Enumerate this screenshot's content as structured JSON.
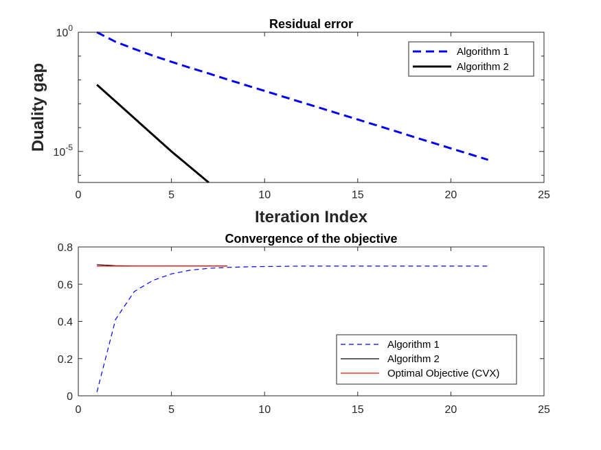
{
  "chart_data": [
    {
      "type": "line",
      "title": "Residual error",
      "xlabel": "Iteration Index",
      "ylabel": "Duality gap",
      "xlim": [
        0,
        25
      ],
      "ylim_log10": [
        -6.3,
        0
      ],
      "yscale": "log",
      "xticks": [
        "0",
        "5",
        "10",
        "15",
        "20",
        "25"
      ],
      "ytick_base": "10",
      "yticks": [
        {
          "exp": 0,
          "label": "0"
        },
        {
          "exp": -5,
          "label": "-5"
        }
      ],
      "legend": {
        "placement": "top-right",
        "entries": [
          "Algorithm 1",
          "Algorithm 2"
        ]
      },
      "series": [
        {
          "name": "Algorithm 1",
          "color": "#0000ff",
          "style": "dashed",
          "x": [
            1,
            2,
            3,
            4,
            5,
            6,
            7,
            8,
            9,
            10,
            11,
            12,
            13,
            14,
            15,
            16,
            17,
            18,
            19,
            20,
            21,
            22
          ],
          "y_log10": [
            0,
            -0.4,
            -0.7,
            -0.98,
            -1.24,
            -1.49,
            -1.73,
            -1.98,
            -2.22,
            -2.46,
            -2.7,
            -2.94,
            -3.18,
            -3.42,
            -3.66,
            -3.9,
            -4.14,
            -4.39,
            -4.63,
            -4.87,
            -5.11,
            -5.35
          ]
        },
        {
          "name": "Algorithm 2",
          "color": "#000000",
          "style": "solid",
          "x": [
            1,
            2,
            3,
            4,
            5,
            6,
            7
          ],
          "y_log10": [
            -2.2,
            -2.9,
            -3.6,
            -4.3,
            -5.0,
            -5.65,
            -6.3
          ]
        }
      ]
    },
    {
      "type": "line",
      "title": "Convergence of the objective",
      "xlim": [
        0,
        25
      ],
      "ylim": [
        0,
        0.8
      ],
      "xticks": [
        "0",
        "5",
        "10",
        "15",
        "20",
        "25"
      ],
      "yticks": [
        "0",
        "0.2",
        "0.4",
        "0.6",
        "0.8"
      ],
      "legend": {
        "placement": "bottom-right",
        "entries": [
          "Algorithm 1",
          "Algorithm 2",
          "Optimal Objective (CVX)"
        ]
      },
      "series": [
        {
          "name": "Algorithm 1",
          "color": "#0000ff",
          "style": "dashed",
          "x": [
            1,
            2,
            3,
            4,
            5,
            6,
            7,
            8,
            9,
            10,
            11,
            12,
            13,
            14,
            15,
            16,
            17,
            18,
            19,
            20,
            21,
            22
          ],
          "y": [
            0.02,
            0.41,
            0.56,
            0.62,
            0.655,
            0.675,
            0.685,
            0.69,
            0.693,
            0.695,
            0.696,
            0.697,
            0.697,
            0.697,
            0.697,
            0.697,
            0.697,
            0.697,
            0.697,
            0.697,
            0.697,
            0.697
          ]
        },
        {
          "name": "Algorithm 2",
          "color": "#000000",
          "style": "solid",
          "x": [
            1,
            2,
            3,
            4,
            5,
            6,
            7,
            8
          ],
          "y": [
            0.705,
            0.699,
            0.697,
            0.697,
            0.697,
            0.697,
            0.697,
            0.697
          ]
        },
        {
          "name": "Optimal Objective (CVX)",
          "color": "#ff0000",
          "style": "solid",
          "x": [
            1,
            8
          ],
          "y": [
            0.697,
            0.697
          ]
        }
      ]
    }
  ]
}
